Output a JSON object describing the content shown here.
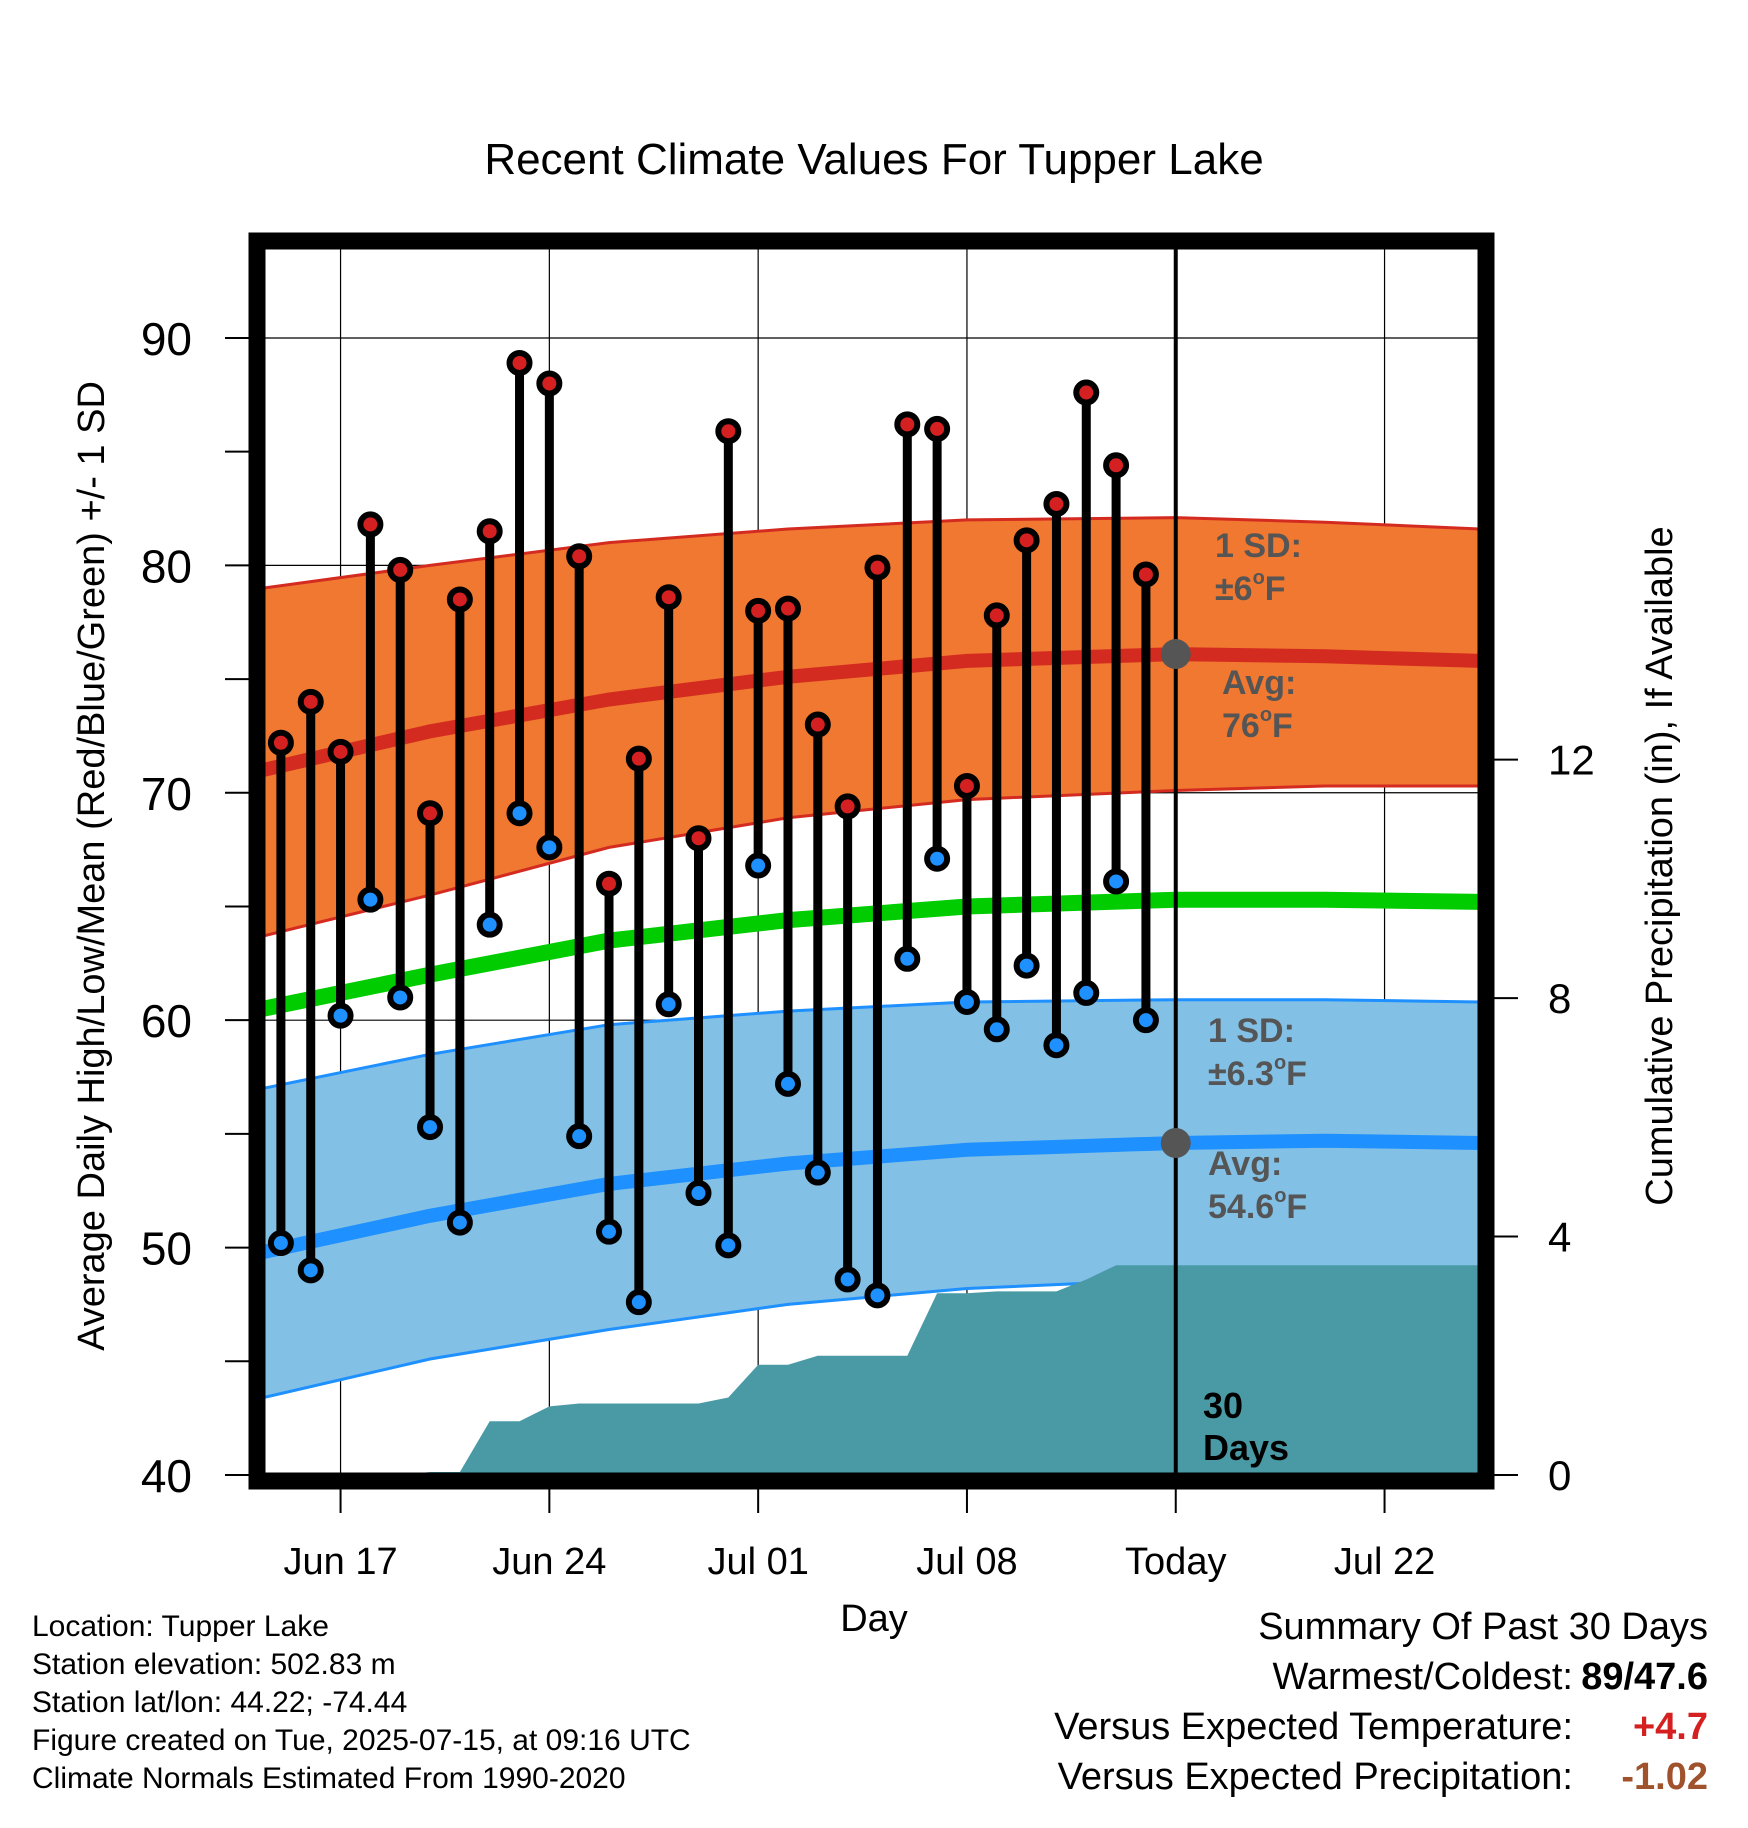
{
  "chart_data": {
    "type": "line",
    "title": "Recent Climate Values For Tupper Lake",
    "xlabel": "Day",
    "ylabel_left": "Average Daily High/Low/Mean (Red/Blue/Green) +/- 1 SD",
    "ylabel_right": "Cumulative Precipitation (in), If Available",
    "ylim_left": [
      40,
      94
    ],
    "ylim_right": [
      0,
      20.6
    ],
    "y_ticks_left": [
      40,
      50,
      60,
      70,
      80,
      90
    ],
    "y_ticks_right": [
      0,
      4,
      8,
      12
    ],
    "x_tick_labels": [
      "Jun 17",
      "Jun 24",
      "Jul 01",
      "Jul 08",
      "Today",
      "Jul 22"
    ],
    "x_tick_days": [
      3,
      10,
      17,
      24,
      31,
      38
    ],
    "xlim_days": [
      0.4,
      41.2
    ],
    "grid": true,
    "today_day": 31,
    "window_label": "30 Days",
    "observed": {
      "days": [
        1,
        2,
        3,
        4,
        5,
        6,
        7,
        8,
        9,
        10,
        11,
        12,
        13,
        14,
        15,
        16,
        17,
        18,
        19,
        20,
        21,
        22,
        23,
        24,
        25,
        26,
        27,
        28,
        29,
        30
      ],
      "highs": [
        72.2,
        74,
        71.8,
        81.8,
        79.8,
        69.1,
        78.5,
        81.5,
        88.9,
        88,
        80.4,
        66,
        71.5,
        78.6,
        68,
        85.9,
        78,
        78.1,
        73,
        69.4,
        79.9,
        86.2,
        86,
        70.3,
        77.8,
        81.1,
        82.7,
        87.6,
        84.4,
        79.6
      ],
      "lows": [
        50.2,
        49,
        60.2,
        65.3,
        61,
        55.3,
        51.1,
        64.2,
        69.1,
        67.6,
        54.9,
        50.7,
        47.6,
        60.7,
        52.4,
        50.1,
        66.8,
        57.2,
        53.3,
        48.6,
        47.9,
        62.7,
        67.1,
        60.8,
        59.6,
        62.4,
        58.9,
        61.2,
        66.1,
        60
      ]
    },
    "normals": {
      "days": [
        0.4,
        6,
        12,
        18,
        24,
        31,
        36,
        41.2
      ],
      "avg_high": [
        71.0,
        72.7,
        74.1,
        75.1,
        75.8,
        76.1,
        76.0,
        75.8
      ],
      "high_sd_upper": [
        79.0,
        80.0,
        81.0,
        81.6,
        82.0,
        82.1,
        81.9,
        81.6
      ],
      "high_sd_lower": [
        63.7,
        65.5,
        67.6,
        68.9,
        69.7,
        70.1,
        70.3,
        70.3
      ],
      "avg_low": [
        49.8,
        51.4,
        52.8,
        53.7,
        54.3,
        54.6,
        54.7,
        54.6
      ],
      "low_sd_upper": [
        57.0,
        58.5,
        59.8,
        60.4,
        60.8,
        60.9,
        60.9,
        60.8
      ],
      "low_sd_lower": [
        43.4,
        45.1,
        46.4,
        47.5,
        48.2,
        48.6,
        48.8,
        48.7
      ],
      "avg_mean": [
        60.5,
        62.0,
        63.5,
        64.4,
        65.0,
        65.3,
        65.3,
        65.2
      ]
    },
    "precipitation": {
      "days": [
        3,
        4,
        5,
        6,
        7,
        8,
        9,
        10,
        11,
        12,
        13,
        14,
        15,
        16,
        17,
        18,
        19,
        20,
        21,
        22,
        23,
        24,
        25,
        26,
        27,
        28,
        29,
        30,
        31
      ],
      "cumulative_in": [
        0,
        0,
        0,
        0.05,
        0.05,
        0.9,
        0.9,
        1.15,
        1.2,
        1.2,
        1.2,
        1.2,
        1.2,
        1.3,
        1.85,
        1.85,
        2,
        2,
        2,
        2,
        3.05,
        3.05,
        3.08,
        3.08,
        3.08,
        3.28,
        3.52,
        3.52,
        3.52
      ]
    },
    "annotations": {
      "high_sd": {
        "line1": "1 SD:",
        "line2": "±6",
        "unit": "F"
      },
      "high_avg": {
        "line1": "Avg:",
        "line2": "76",
        "unit": "F"
      },
      "low_sd": {
        "line1": "1 SD:",
        "line2": "±6.3",
        "unit": "F"
      },
      "low_avg": {
        "line1": "Avg:",
        "line2": "54.6",
        "unit": "F"
      }
    },
    "colors": {
      "high_band": "#f07830",
      "high_avg_line": "#d42b20",
      "low_band": "#82c0e6",
      "low_avg_line": "#1e90ff",
      "mean_line": "#00cc00",
      "precip_fill": "#4a9aa5",
      "high_marker": "#d42020",
      "low_marker": "#1e90ff",
      "today_marker": "#555555",
      "annotation_text": "#555555"
    }
  },
  "metadata": {
    "location": "Location: Tupper Lake",
    "elevation": "Station elevation: 502.83 m",
    "latlon": "Station lat/lon: 44.22; -74.44",
    "created": "Figure created on Tue, 2025-07-15, at 09:16 UTC",
    "normals_period": "Climate Normals Estimated From 1990-2020"
  },
  "summary": {
    "heading": "Summary Of Past 30 Days",
    "warm_cold_label": "Warmest/Coldest:",
    "warm_value": "89",
    "cold_value": "/47.6",
    "temp_label": "Versus Expected Temperature:",
    "temp_value": "+4.7",
    "temp_color": "#d42020",
    "precip_label": "Versus Expected Precipitation:",
    "precip_value": "-1.02",
    "precip_color": "#a0522d"
  }
}
